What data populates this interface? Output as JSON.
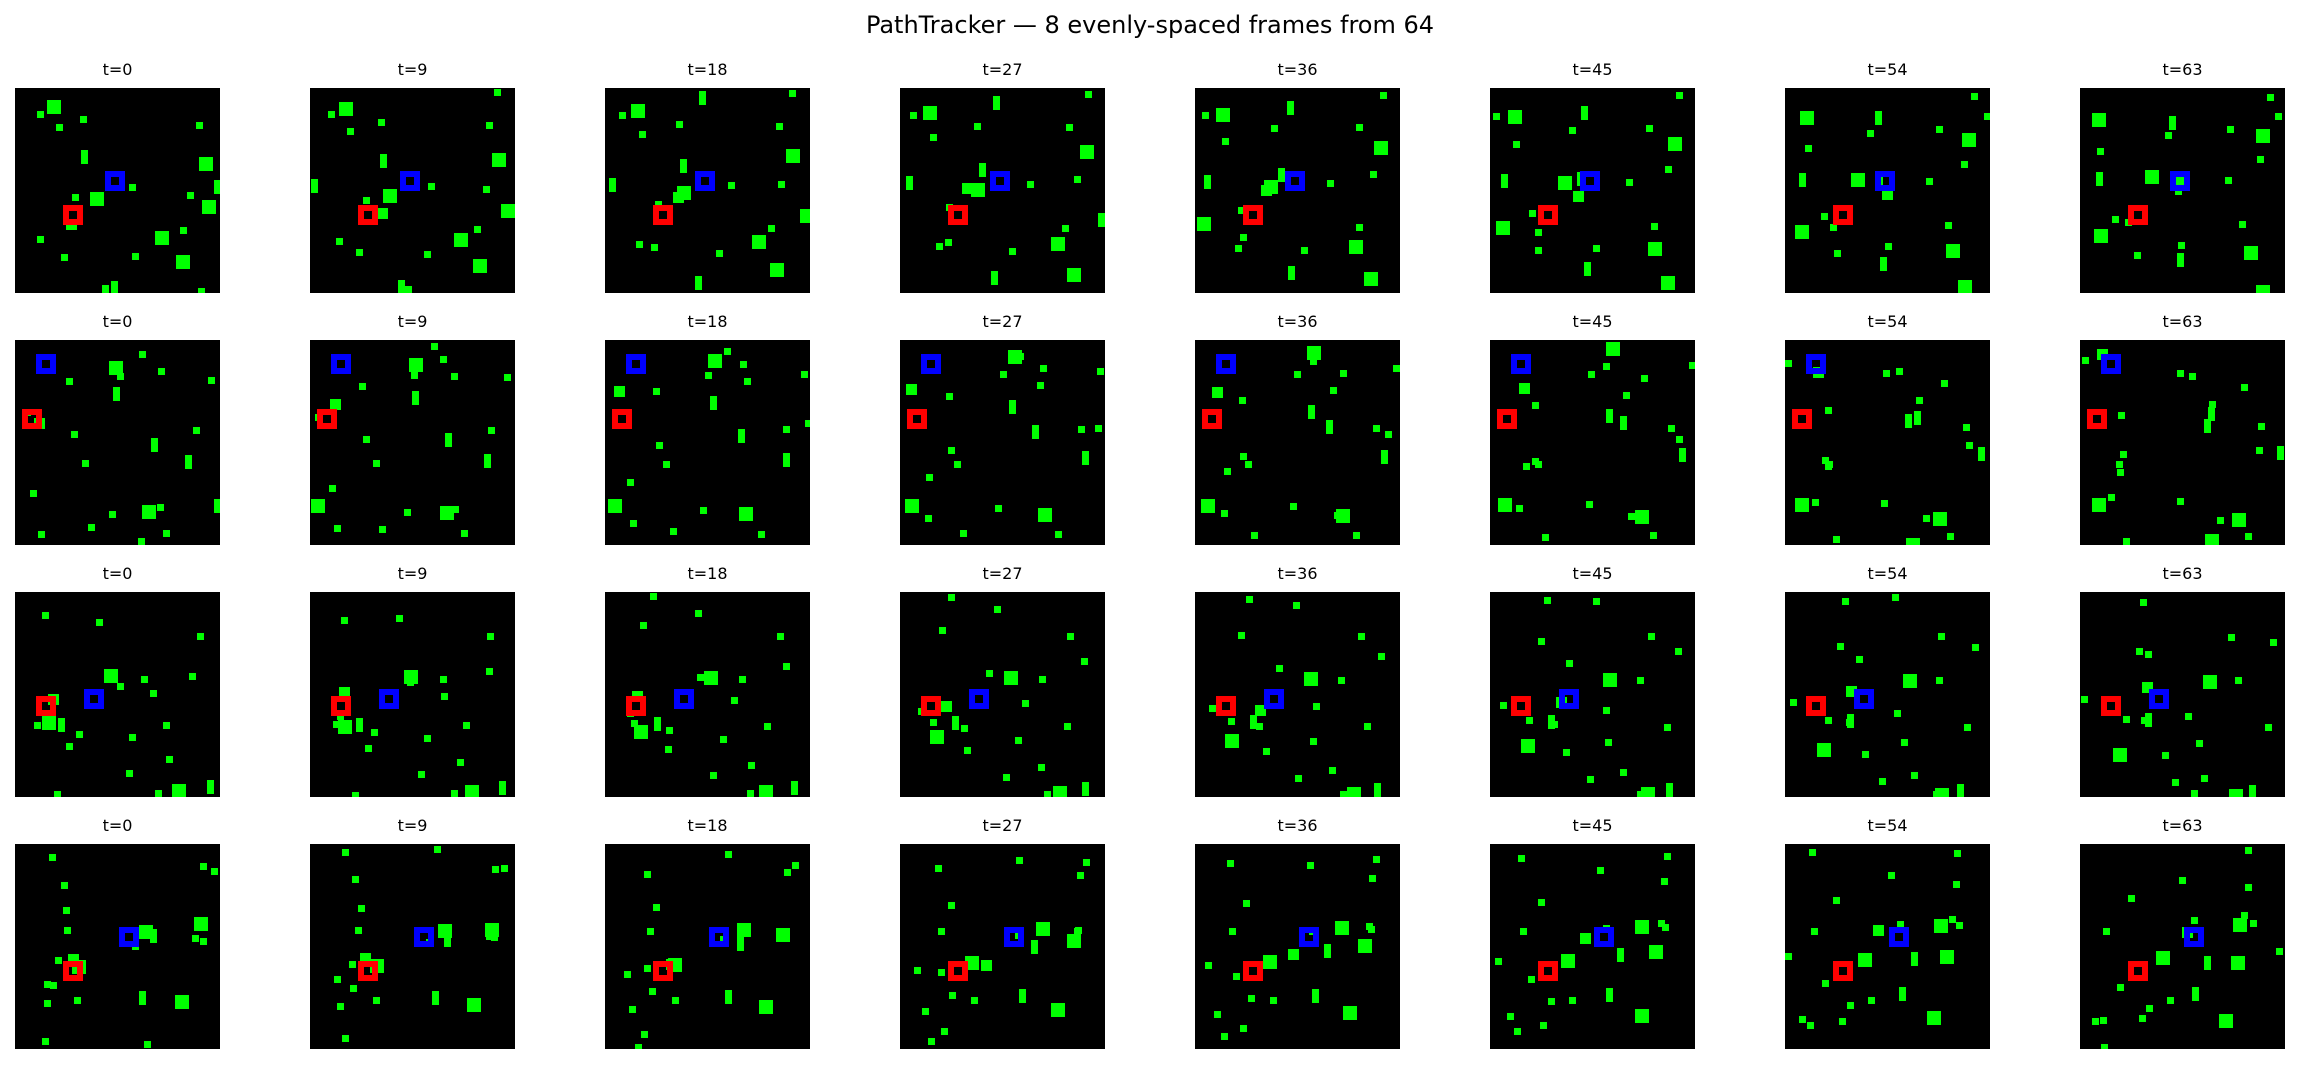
{
  "title": "PathTracker — 8 evenly-spaced frames from 64",
  "colors": {
    "background": "#000000",
    "distractor": "#00ff00",
    "start_marker": "#ff0000",
    "goal_marker": "#0000ff"
  },
  "frame_titles": [
    "t=0",
    "t=9",
    "t=18",
    "t=27",
    "t=36",
    "t=45",
    "t=54",
    "t=63"
  ],
  "rows": [
    {
      "frames": [
        {
          "title": "t=0"
        },
        {
          "title": "t=9"
        },
        {
          "title": "t=18"
        },
        {
          "title": "t=27"
        },
        {
          "title": "t=36"
        },
        {
          "title": "t=45"
        },
        {
          "title": "t=54"
        },
        {
          "title": "t=63"
        }
      ]
    },
    {
      "frames": [
        {
          "title": "t=0"
        },
        {
          "title": "t=9"
        },
        {
          "title": "t=18"
        },
        {
          "title": "t=27"
        },
        {
          "title": "t=36"
        },
        {
          "title": "t=45"
        },
        {
          "title": "t=54"
        },
        {
          "title": "t=63"
        }
      ]
    },
    {
      "frames": [
        {
          "title": "t=0"
        },
        {
          "title": "t=9"
        },
        {
          "title": "t=18"
        },
        {
          "title": "t=27"
        },
        {
          "title": "t=36"
        },
        {
          "title": "t=45"
        },
        {
          "title": "t=54"
        },
        {
          "title": "t=63"
        }
      ]
    },
    {
      "frames": [
        {
          "title": "t=0"
        },
        {
          "title": "t=9"
        },
        {
          "title": "t=18"
        },
        {
          "title": "t=27"
        },
        {
          "title": "t=36"
        },
        {
          "title": "t=45"
        },
        {
          "title": "t=54"
        },
        {
          "title": "t=63"
        }
      ]
    }
  ]
}
